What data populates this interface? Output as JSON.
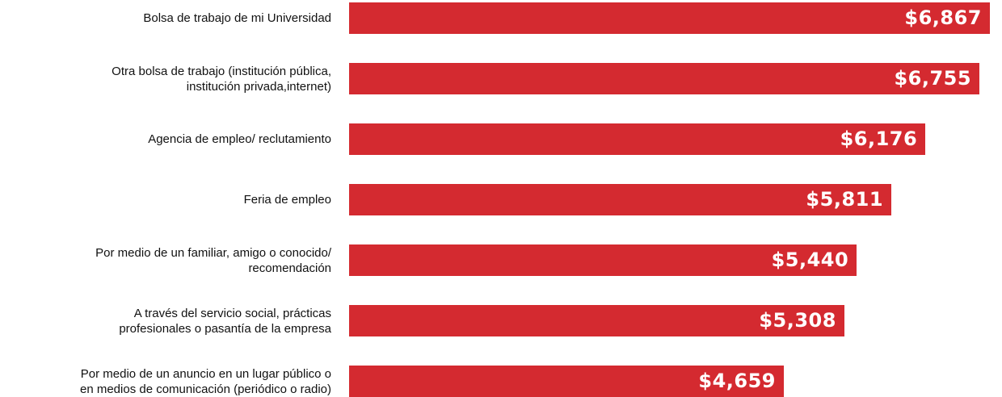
{
  "chart_data": {
    "type": "bar",
    "orientation": "horizontal",
    "categories": [
      "Bolsa de trabajo de mi Universidad",
      "Otra bolsa de trabajo (institución pública,\ninstitución privada,internet)",
      "Agencia de empleo/ reclutamiento",
      "Feria de empleo",
      "Por medio de un familiar, amigo o conocido/\nrecomendación",
      "A través del servicio social, prácticas\nprofesionales o pasantía de la empresa",
      "Por medio de un anuncio en un lugar público o\nen medios de comunicación (periódico o radio)"
    ],
    "values": [
      6867,
      6755,
      6176,
      5811,
      5440,
      5308,
      4659
    ],
    "value_labels": [
      "$6,867",
      "$6,755",
      "$6,176",
      "$5,811",
      "$5,440",
      "$5,308",
      "$4,659"
    ],
    "bar_color": "#d42a30",
    "value_label_color": "#ffffff",
    "legend": "none",
    "grid": false
  }
}
